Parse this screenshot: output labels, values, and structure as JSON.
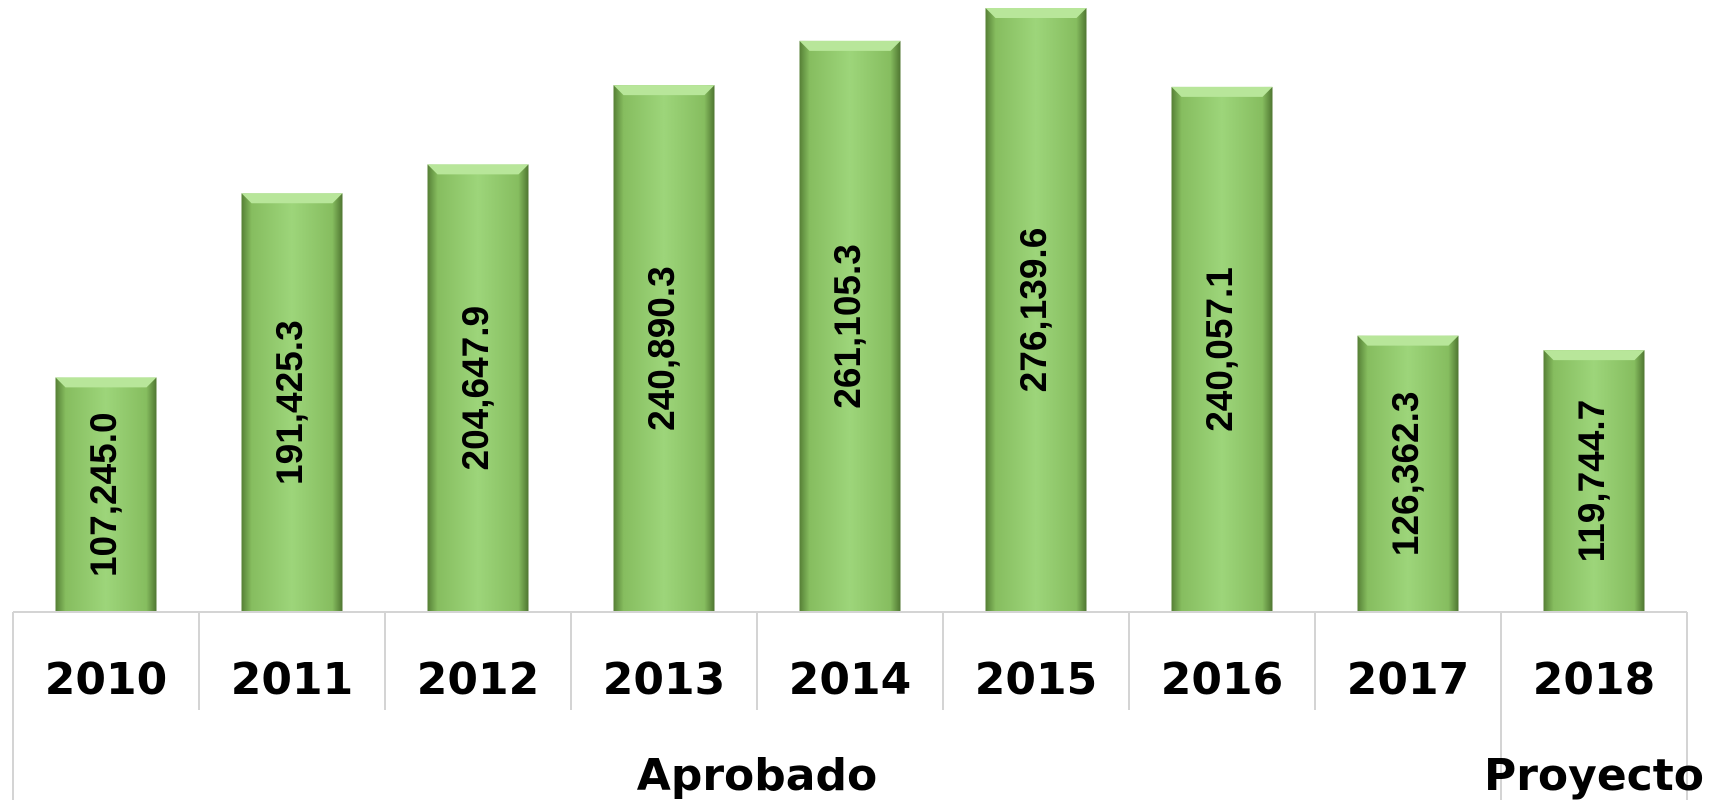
{
  "chart_data": {
    "type": "bar",
    "categories": [
      "2010",
      "2011",
      "2012",
      "2013",
      "2014",
      "2015",
      "2016",
      "2017",
      "2018"
    ],
    "values": [
      107245.0,
      191425.3,
      204647.9,
      240890.3,
      261105.3,
      276139.6,
      240057.1,
      126362.3,
      119744.7
    ],
    "value_labels": [
      "107,245.0",
      "191,425.3",
      "204,647.9",
      "240,890.3",
      "261,105.3",
      "276,139.6",
      "240,057.1",
      "126,362.3",
      "119,744.7"
    ],
    "groups": [
      {
        "name": "Aprobado",
        "count": 8
      },
      {
        "name": "Proyecto",
        "count": 1
      }
    ],
    "color": "#8cc466"
  }
}
